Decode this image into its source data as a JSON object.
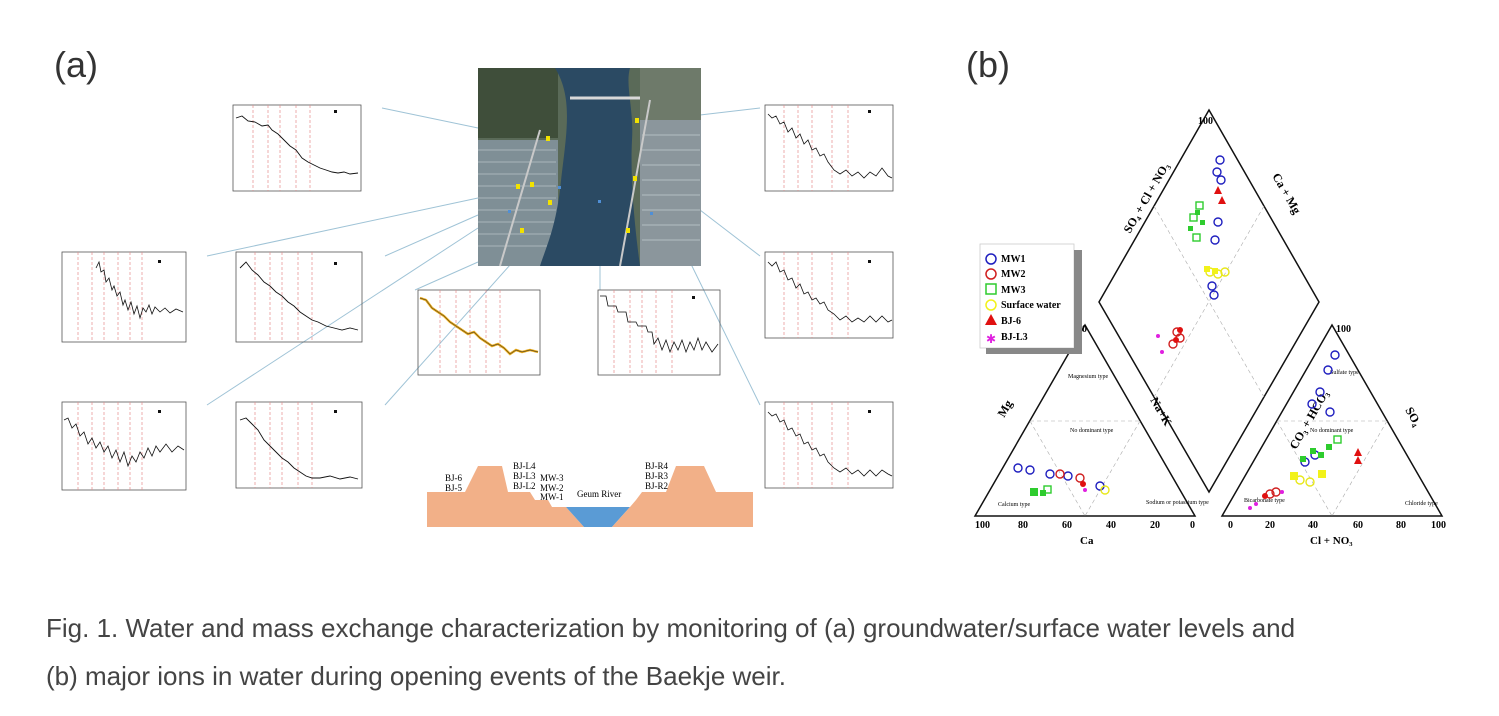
{
  "panel_a_label": "(a)",
  "panel_b_label": "(b)",
  "caption": {
    "line1": "Fig. 1. Water and mass exchange characterization by monitoring of (a) groundwater/surface water levels and",
    "line2": "(b) major ions in water during opening events of the Baekje weir."
  },
  "cross_section": {
    "left_wells_1": "BJ-6",
    "left_wells_2": "BJ-5",
    "mid_wells_1": "BJ-L4",
    "mid_wells_2": "BJ-L3",
    "mid_wells_3": "BJ-L2",
    "mw_1": "MW-3",
    "mw_2": "MW-2",
    "mw_3": "MW-1",
    "river": "Geum River",
    "right_wells_1": "BJ-R4",
    "right_wells_2": "BJ-R3",
    "right_wells_3": "BJ-R2"
  },
  "piper_legend": [
    {
      "label": "MW1",
      "color": "#1f1fbf",
      "marker": "circle"
    },
    {
      "label": "MW2",
      "color": "#d01f1f",
      "marker": "circle"
    },
    {
      "label": "MW3",
      "color": "#2ecc2e",
      "marker": "square"
    },
    {
      "label": "Surface water",
      "color": "#f2f21a",
      "marker": "circle"
    },
    {
      "label": "BJ-6",
      "color": "#e01010",
      "marker": "triangle"
    },
    {
      "label": "BJ-L3",
      "color": "#e020e0",
      "marker": "star"
    }
  ],
  "piper_labels": {
    "cation_axis": "Ca",
    "anion_axis": "Cl + NO₃",
    "mg": "Mg",
    "nak": "Na+K",
    "co3": "CO₃ + HCO₃",
    "so4": "SO₄",
    "so4_cl": "SO₄ + Cl + NO₃",
    "ca_mg": "Ca + Mg",
    "magnesium_type": "Magnesium type",
    "no_dominant_left": "No dominant type",
    "calcium_type": "Calcium type",
    "sodium_type": "Sodium or potassium type",
    "no_dominant_right": "No dominant type",
    "sulfate_type": "Sulfate type",
    "bicarbonate_type": "Bicarbonate type",
    "chloride_type": "Chloride type"
  },
  "piper_ticks": [
    "100",
    "80",
    "60",
    "40",
    "20",
    "0"
  ]
}
